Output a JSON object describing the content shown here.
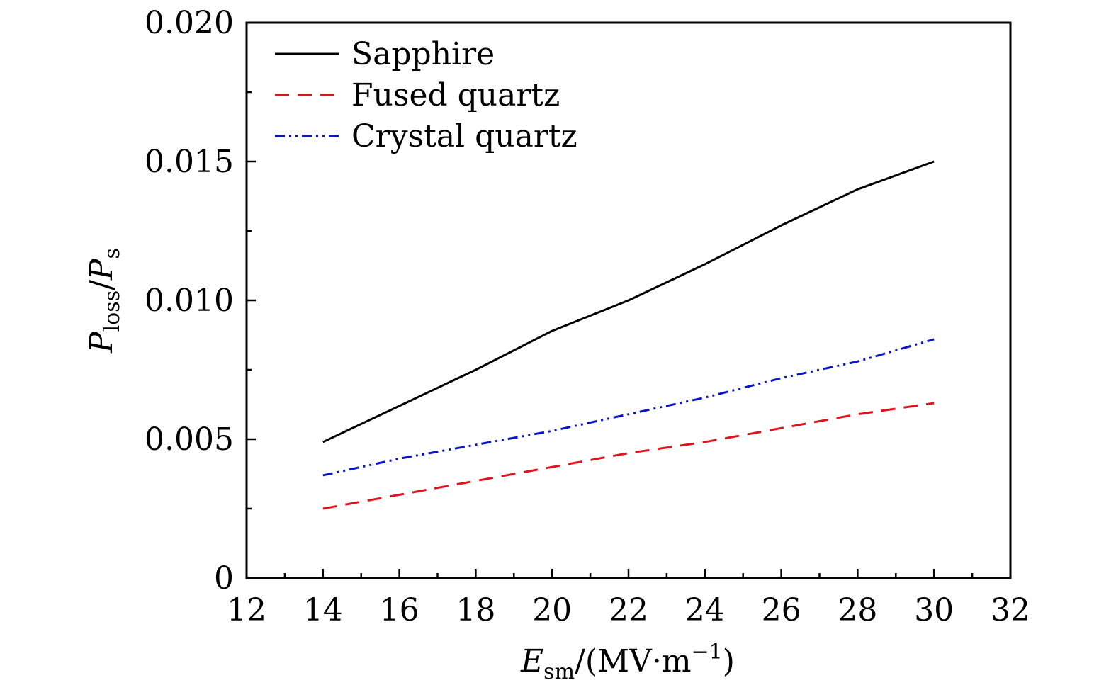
{
  "chart_data": {
    "type": "line",
    "xlabel": {
      "base": "E",
      "sub": "sm",
      "rest": "/(MV·m",
      "sup": "−1",
      "close": ")"
    },
    "ylabel": {
      "base1": "P",
      "sub1": "loss",
      "slash": "/",
      "base2": "P",
      "sub2": "s"
    },
    "xlim": [
      12,
      32
    ],
    "ylim": [
      0,
      0.02
    ],
    "x_ticks": [
      12,
      14,
      16,
      18,
      20,
      22,
      24,
      26,
      28,
      30,
      32
    ],
    "x_tick_labels": [
      "12",
      "14",
      "16",
      "18",
      "20",
      "22",
      "24",
      "26",
      "28",
      "30",
      "32"
    ],
    "y_ticks": [
      0,
      0.005,
      0.01,
      0.015,
      0.02
    ],
    "y_tick_labels": [
      "0",
      "0.005",
      "0.010",
      "0.015",
      "0.020"
    ],
    "legend_position": "top-left",
    "grid": false,
    "series": [
      {
        "name": "Sapphire",
        "color": "#000000",
        "dash": "solid",
        "x": [
          14,
          16,
          18,
          20,
          22,
          24,
          26,
          28,
          30
        ],
        "y": [
          0.0049,
          0.0062,
          0.0075,
          0.0089,
          0.01,
          0.0113,
          0.0127,
          0.014,
          0.015
        ]
      },
      {
        "name": "Fused quartz",
        "color": "#e0141e",
        "dash": "dashed",
        "x": [
          14,
          16,
          18,
          20,
          22,
          24,
          26,
          28,
          30
        ],
        "y": [
          0.0025,
          0.003,
          0.0035,
          0.004,
          0.0045,
          0.0049,
          0.0054,
          0.0059,
          0.0063
        ]
      },
      {
        "name": "Crystal quartz",
        "color": "#0a14c8",
        "dash": "dash-dot-dot",
        "x": [
          14,
          16,
          18,
          20,
          22,
          24,
          26,
          28,
          30
        ],
        "y": [
          0.0037,
          0.0043,
          0.0048,
          0.0053,
          0.0059,
          0.0065,
          0.0072,
          0.0078,
          0.0086
        ]
      }
    ]
  }
}
